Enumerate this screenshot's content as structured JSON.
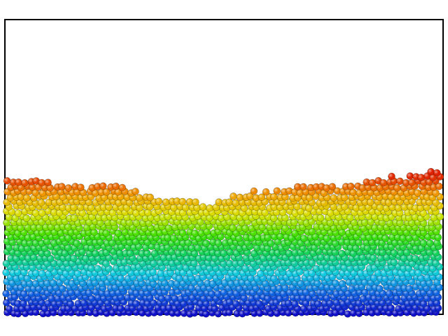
{
  "scene": {
    "description_type": "granular-particle-simulation-frame",
    "particles": {
      "shape": "sphere",
      "color_scale": "rainbow-by-height",
      "color_scale_stops": [
        "#1010c8",
        "#1060e0",
        "#10c8e0",
        "#10d060",
        "#40e000",
        "#d8e000",
        "#f0a000",
        "#e02000"
      ],
      "surface_profile": "wavy-with-central-dip",
      "bed_fraction_of_box_height": 0.46
    },
    "colors": {
      "background": "#ffffff",
      "border": "#000000"
    }
  }
}
